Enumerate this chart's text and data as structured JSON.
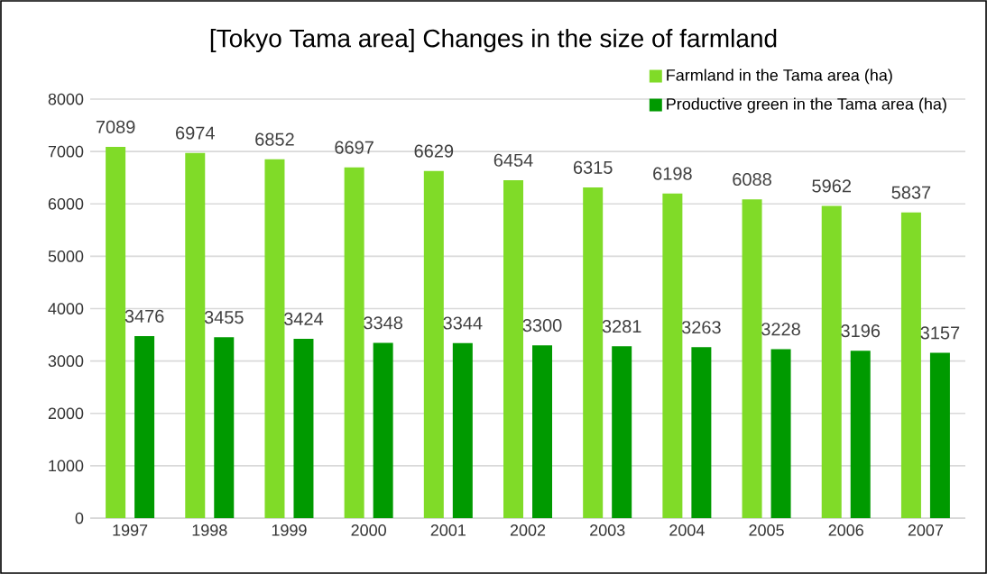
{
  "chart_data": {
    "type": "bar",
    "title": "[Tokyo Tama area] Changes in the size of farmland",
    "categories": [
      "1997",
      "1998",
      "1999",
      "2000",
      "2001",
      "2002",
      "2003",
      "2004",
      "2005",
      "2006",
      "2007"
    ],
    "series": [
      {
        "name": "Farmland in the Tama area (ha)",
        "color": "#80db28",
        "values": [
          7089,
          6974,
          6852,
          6697,
          6629,
          6454,
          6315,
          6198,
          6088,
          5962,
          5837
        ]
      },
      {
        "name": "Productive green in the Tama area (ha)",
        "color": "#009a00",
        "values": [
          3476,
          3455,
          3424,
          3348,
          3344,
          3300,
          3281,
          3263,
          3228,
          3196,
          3157
        ]
      }
    ],
    "ylim": [
      0,
      8000
    ],
    "yticks": [
      0,
      1000,
      2000,
      3000,
      4000,
      5000,
      6000,
      7000,
      8000
    ],
    "grid": "y",
    "legend": "top right",
    "data_labels": true
  }
}
